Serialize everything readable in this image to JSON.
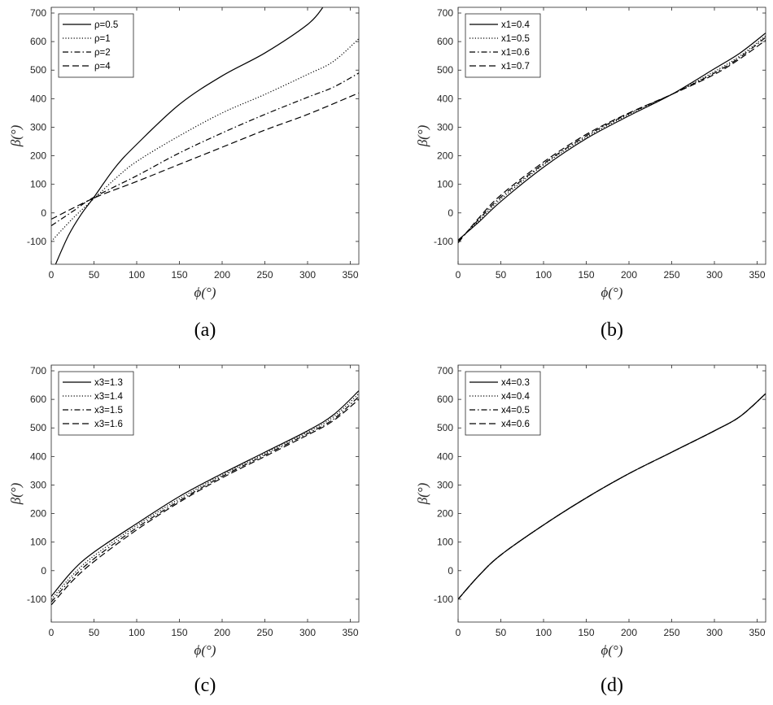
{
  "chart_data": [
    {
      "type": "line",
      "caption": "(a)",
      "xlabel": "ϕ(°)",
      "ylabel": "β(°)",
      "xlim": [
        0,
        360
      ],
      "ylim": [
        -180,
        720
      ],
      "xticks": [
        0,
        50,
        100,
        150,
        200,
        250,
        300,
        350
      ],
      "yticks": [
        -100,
        0,
        100,
        200,
        300,
        400,
        500,
        600,
        700
      ],
      "legend_position": "top-left",
      "series": [
        {
          "name": "ρ=0.5",
          "dash": "solid",
          "x": [
            5,
            20,
            35,
            50,
            75,
            100,
            150,
            200,
            250,
            300,
            318
          ],
          "y": [
            -180,
            -80,
            -5,
            55,
            160,
            240,
            380,
            480,
            560,
            660,
            720
          ]
        },
        {
          "name": "ρ=1",
          "dash": "dotted",
          "x": [
            0,
            25,
            50,
            75,
            100,
            150,
            200,
            250,
            300,
            330,
            360
          ],
          "y": [
            -100,
            -20,
            50,
            120,
            180,
            270,
            350,
            415,
            485,
            530,
            610
          ]
        },
        {
          "name": "ρ=2",
          "dash": "dashdot",
          "x": [
            0,
            25,
            50,
            100,
            150,
            200,
            250,
            300,
            330,
            360
          ],
          "y": [
            -45,
            5,
            55,
            130,
            210,
            280,
            345,
            405,
            440,
            490
          ]
        },
        {
          "name": "ρ=4",
          "dash": "dashed",
          "x": [
            0,
            50,
            100,
            150,
            200,
            250,
            300,
            360
          ],
          "y": [
            -22,
            52,
            110,
            170,
            230,
            290,
            345,
            420
          ]
        }
      ]
    },
    {
      "type": "line",
      "caption": "(b)",
      "xlabel": "ϕ(°)",
      "ylabel": "β(°)",
      "xlim": [
        0,
        360
      ],
      "ylim": [
        -180,
        720
      ],
      "xticks": [
        0,
        50,
        100,
        150,
        200,
        250,
        300,
        350
      ],
      "yticks": [
        -100,
        0,
        100,
        200,
        300,
        400,
        500,
        600,
        700
      ],
      "legend_position": "top-left",
      "series": [
        {
          "name": "x1=0.4",
          "dash": "solid",
          "x": [
            0,
            25,
            50,
            100,
            150,
            200,
            250,
            300,
            330,
            360
          ],
          "y": [
            -95,
            -30,
            40,
            160,
            260,
            340,
            415,
            505,
            560,
            630
          ]
        },
        {
          "name": "x1=0.5",
          "dash": "dotted",
          "x": [
            0,
            25,
            50,
            100,
            150,
            200,
            250,
            300,
            330,
            360
          ],
          "y": [
            -98,
            -25,
            48,
            168,
            265,
            345,
            415,
            495,
            550,
            620
          ]
        },
        {
          "name": "x1=0.6",
          "dash": "dashdot",
          "x": [
            0,
            25,
            50,
            100,
            150,
            200,
            250,
            300,
            330,
            360
          ],
          "y": [
            -100,
            -20,
            55,
            172,
            270,
            348,
            415,
            490,
            545,
            615
          ]
        },
        {
          "name": "x1=0.7",
          "dash": "dashed",
          "x": [
            0,
            25,
            50,
            100,
            150,
            200,
            250,
            300,
            330,
            360
          ],
          "y": [
            -105,
            -15,
            62,
            178,
            275,
            350,
            415,
            485,
            540,
            605
          ]
        }
      ]
    },
    {
      "type": "line",
      "caption": "(c)",
      "xlabel": "ϕ(°)",
      "ylabel": "β(°)",
      "xlim": [
        0,
        360
      ],
      "ylim": [
        -180,
        720
      ],
      "xticks": [
        0,
        50,
        100,
        150,
        200,
        250,
        300,
        350
      ],
      "yticks": [
        -100,
        0,
        100,
        200,
        300,
        400,
        500,
        600,
        700
      ],
      "legend_position": "top-left",
      "series": [
        {
          "name": "x3=1.3",
          "dash": "solid",
          "x": [
            0,
            25,
            50,
            100,
            150,
            200,
            250,
            300,
            330,
            360
          ],
          "y": [
            -90,
            0,
            65,
            165,
            260,
            340,
            415,
            490,
            545,
            630
          ]
        },
        {
          "name": "x3=1.4",
          "dash": "dotted",
          "x": [
            0,
            25,
            50,
            100,
            150,
            200,
            250,
            300,
            330,
            360
          ],
          "y": [
            -100,
            -15,
            52,
            158,
            252,
            335,
            410,
            485,
            538,
            620
          ]
        },
        {
          "name": "x3=1.5",
          "dash": "dashdot",
          "x": [
            0,
            25,
            50,
            100,
            150,
            200,
            250,
            300,
            330,
            360
          ],
          "y": [
            -110,
            -25,
            42,
            150,
            245,
            330,
            405,
            480,
            530,
            610
          ]
        },
        {
          "name": "x3=1.6",
          "dash": "dashed",
          "x": [
            0,
            25,
            50,
            100,
            150,
            200,
            250,
            300,
            330,
            360
          ],
          "y": [
            -120,
            -35,
            32,
            143,
            240,
            325,
            400,
            475,
            525,
            600
          ]
        }
      ]
    },
    {
      "type": "line",
      "caption": "(d)",
      "xlabel": "ϕ(°)",
      "ylabel": "β(°)",
      "xlim": [
        0,
        360
      ],
      "ylim": [
        -180,
        720
      ],
      "xticks": [
        0,
        50,
        100,
        150,
        200,
        250,
        300,
        350
      ],
      "yticks": [
        -100,
        0,
        100,
        200,
        300,
        400,
        500,
        600,
        700
      ],
      "legend_position": "top-left",
      "series": [
        {
          "name": "x4=0.3",
          "dash": "solid",
          "x": [
            0,
            25,
            50,
            100,
            150,
            200,
            250,
            300,
            330,
            360
          ],
          "y": [
            -100,
            -15,
            55,
            160,
            255,
            340,
            415,
            490,
            540,
            620
          ]
        },
        {
          "name": "x4=0.4",
          "dash": "dotted",
          "x": [
            0,
            25,
            50,
            100,
            150,
            200,
            250,
            300,
            330,
            360
          ],
          "y": [
            -100,
            -15,
            55,
            160,
            255,
            340,
            415,
            490,
            540,
            620
          ]
        },
        {
          "name": "x4=0.5",
          "dash": "dashdot",
          "x": [
            0,
            25,
            50,
            100,
            150,
            200,
            250,
            300,
            330,
            360
          ],
          "y": [
            -100,
            -15,
            55,
            160,
            255,
            340,
            415,
            490,
            540,
            620
          ]
        },
        {
          "name": "x4=0.6",
          "dash": "dashed",
          "x": [
            0,
            25,
            50,
            100,
            150,
            200,
            250,
            300,
            330,
            360
          ],
          "y": [
            -100,
            -15,
            55,
            160,
            255,
            340,
            415,
            490,
            540,
            620
          ]
        }
      ]
    }
  ]
}
